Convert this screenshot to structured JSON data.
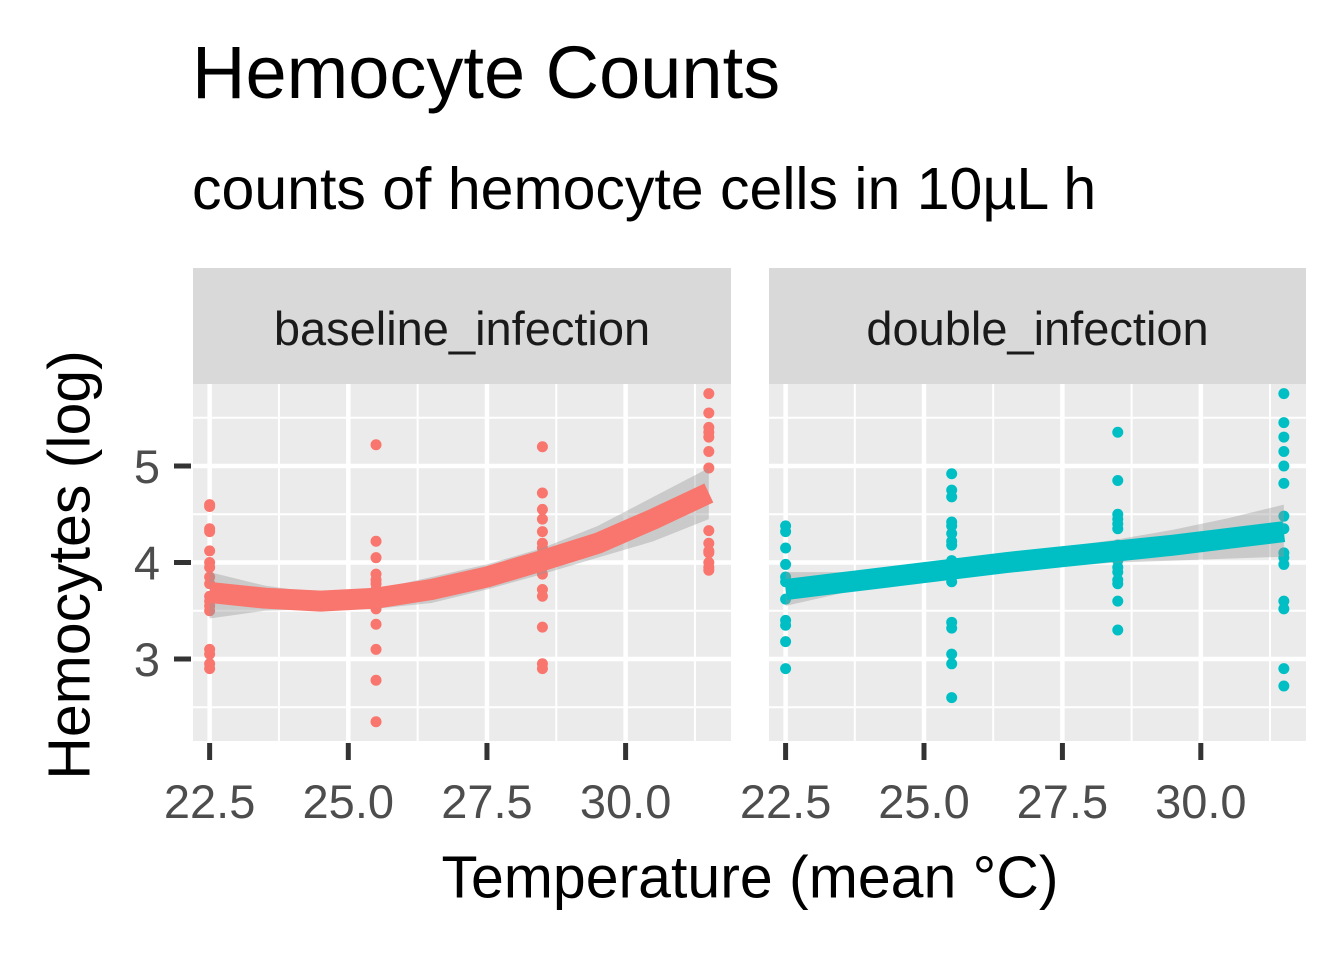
{
  "chart_data": {
    "type": "scatter",
    "title": "Hemocyte Counts",
    "subtitle": "counts of hemocyte cells in 10µL h",
    "xlabel": "Temperature (mean °C)",
    "ylabel": "Hemocytes (log)",
    "xlim": [
      22.2,
      31.9
    ],
    "ylim": [
      2.15,
      5.85
    ],
    "x_ticks": [
      22.5,
      25.0,
      27.5,
      30.0
    ],
    "x_tick_labels": [
      "22.5",
      "25.0",
      "27.5",
      "30.0"
    ],
    "y_ticks": [
      3,
      4,
      5
    ],
    "y_tick_labels": [
      "3",
      "4",
      "5"
    ],
    "grid": true,
    "facets": [
      {
        "name": "baseline_infection",
        "color": "#F8766D",
        "points": [
          [
            22.5,
            4.6
          ],
          [
            22.5,
            4.58
          ],
          [
            22.5,
            4.35
          ],
          [
            22.5,
            4.32
          ],
          [
            22.5,
            4.12
          ],
          [
            22.5,
            4.0
          ],
          [
            22.5,
            3.95
          ],
          [
            22.5,
            3.85
          ],
          [
            22.5,
            3.78
          ],
          [
            22.5,
            3.65
          ],
          [
            22.5,
            3.6
          ],
          [
            22.5,
            3.55
          ],
          [
            22.5,
            3.5
          ],
          [
            22.5,
            3.1
          ],
          [
            22.5,
            3.05
          ],
          [
            22.5,
            2.95
          ],
          [
            22.5,
            2.9
          ],
          [
            25.5,
            5.22
          ],
          [
            25.5,
            4.22
          ],
          [
            25.5,
            4.05
          ],
          [
            25.5,
            3.88
          ],
          [
            25.5,
            3.82
          ],
          [
            25.5,
            3.78
          ],
          [
            25.5,
            3.72
          ],
          [
            25.5,
            3.65
          ],
          [
            25.5,
            3.58
          ],
          [
            25.5,
            3.52
          ],
          [
            25.5,
            3.36
          ],
          [
            25.5,
            3.1
          ],
          [
            25.5,
            2.78
          ],
          [
            25.5,
            2.35
          ],
          [
            28.5,
            5.2
          ],
          [
            28.5,
            4.72
          ],
          [
            28.5,
            4.55
          ],
          [
            28.5,
            4.45
          ],
          [
            28.5,
            4.32
          ],
          [
            28.5,
            4.2
          ],
          [
            28.5,
            4.15
          ],
          [
            28.5,
            4.0
          ],
          [
            28.5,
            3.95
          ],
          [
            28.5,
            3.88
          ],
          [
            28.5,
            3.72
          ],
          [
            28.5,
            3.65
          ],
          [
            28.5,
            3.33
          ],
          [
            28.5,
            2.95
          ],
          [
            28.5,
            2.9
          ],
          [
            31.5,
            5.75
          ],
          [
            31.5,
            5.55
          ],
          [
            31.5,
            5.4
          ],
          [
            31.5,
            5.35
          ],
          [
            31.5,
            5.3
          ],
          [
            31.5,
            5.15
          ],
          [
            31.5,
            4.98
          ],
          [
            31.5,
            4.33
          ],
          [
            31.5,
            4.2
          ],
          [
            31.5,
            4.12
          ],
          [
            31.5,
            4.1
          ],
          [
            31.5,
            4.0
          ],
          [
            31.5,
            3.95
          ],
          [
            31.5,
            3.92
          ]
        ],
        "smooth": {
          "x": [
            22.5,
            23.5,
            24.5,
            25.5,
            26.5,
            27.5,
            28.5,
            29.5,
            30.5,
            31.5
          ],
          "y": [
            3.69,
            3.63,
            3.6,
            3.63,
            3.72,
            3.85,
            4.02,
            4.2,
            4.45,
            4.72
          ],
          "lower": [
            3.42,
            3.5,
            3.52,
            3.52,
            3.58,
            3.72,
            3.88,
            4.05,
            4.22,
            4.45
          ],
          "upper": [
            3.9,
            3.76,
            3.68,
            3.72,
            3.85,
            3.98,
            4.15,
            4.38,
            4.68,
            4.98
          ]
        }
      },
      {
        "name": "double_infection",
        "color": "#00BFC4",
        "points": [
          [
            22.5,
            4.38
          ],
          [
            22.5,
            4.32
          ],
          [
            22.5,
            4.15
          ],
          [
            22.5,
            3.98
          ],
          [
            22.5,
            3.85
          ],
          [
            22.5,
            3.8
          ],
          [
            22.5,
            3.62
          ],
          [
            22.5,
            3.4
          ],
          [
            22.5,
            3.35
          ],
          [
            22.5,
            3.18
          ],
          [
            22.5,
            2.9
          ],
          [
            25.5,
            4.92
          ],
          [
            25.5,
            4.75
          ],
          [
            25.5,
            4.68
          ],
          [
            25.5,
            4.42
          ],
          [
            25.5,
            4.38
          ],
          [
            25.5,
            4.3
          ],
          [
            25.5,
            4.22
          ],
          [
            25.5,
            4.18
          ],
          [
            25.5,
            4.02
          ],
          [
            25.5,
            3.98
          ],
          [
            25.5,
            3.8
          ],
          [
            25.5,
            3.38
          ],
          [
            25.5,
            3.32
          ],
          [
            25.5,
            3.05
          ],
          [
            25.5,
            2.95
          ],
          [
            25.5,
            2.6
          ],
          [
            28.5,
            5.35
          ],
          [
            28.5,
            4.85
          ],
          [
            28.5,
            4.5
          ],
          [
            28.5,
            4.45
          ],
          [
            28.5,
            4.4
          ],
          [
            28.5,
            4.35
          ],
          [
            28.5,
            4.18
          ],
          [
            28.5,
            4.12
          ],
          [
            28.5,
            4.02
          ],
          [
            28.5,
            3.95
          ],
          [
            28.5,
            3.9
          ],
          [
            28.5,
            3.82
          ],
          [
            28.5,
            3.78
          ],
          [
            28.5,
            3.6
          ],
          [
            28.5,
            3.3
          ],
          [
            31.5,
            5.75
          ],
          [
            31.5,
            5.45
          ],
          [
            31.5,
            5.3
          ],
          [
            31.5,
            5.15
          ],
          [
            31.5,
            5.0
          ],
          [
            31.5,
            4.82
          ],
          [
            31.5,
            4.48
          ],
          [
            31.5,
            4.35
          ],
          [
            31.5,
            4.1
          ],
          [
            31.5,
            4.05
          ],
          [
            31.5,
            3.98
          ],
          [
            31.5,
            3.6
          ],
          [
            31.5,
            3.52
          ],
          [
            31.5,
            2.9
          ],
          [
            31.5,
            2.72
          ]
        ],
        "smooth": {
          "x": [
            22.5,
            23.5,
            24.5,
            25.5,
            26.5,
            27.5,
            28.5,
            29.5,
            30.5,
            31.5
          ],
          "y": [
            3.72,
            3.79,
            3.86,
            3.93,
            4.0,
            4.06,
            4.12,
            4.18,
            4.25,
            4.32
          ],
          "lower": [
            3.55,
            3.68,
            3.78,
            3.86,
            3.92,
            3.96,
            4.0,
            4.02,
            4.04,
            4.06
          ],
          "upper": [
            3.9,
            3.9,
            3.94,
            4.0,
            4.08,
            4.16,
            4.24,
            4.34,
            4.46,
            4.6
          ]
        }
      }
    ]
  }
}
